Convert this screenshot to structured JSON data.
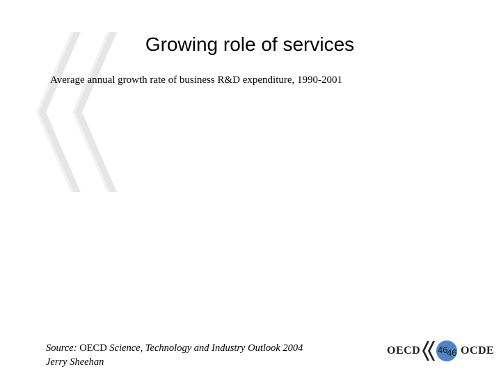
{
  "slide": {
    "title": "Growing role of services",
    "subtitle": "Average annual growth rate of business R&D expenditure, 1990-2001"
  },
  "source": {
    "prefix": "Source: ",
    "org": "OECD ",
    "publication": "Science, Technology and Industry Outlook 2004",
    "author": "Jerry Sheehan"
  },
  "footer": {
    "logo_left": "OECD",
    "logo_right": "OCDE",
    "page_number": "46",
    "page_number_echo": "46"
  },
  "colors": {
    "watermark": "#e3e3e3",
    "page_circle": "#4f84c4"
  },
  "icons": {
    "watermark": "oecd-chevrons-icon",
    "footer": "oecd-logo-chevrons-icon"
  }
}
